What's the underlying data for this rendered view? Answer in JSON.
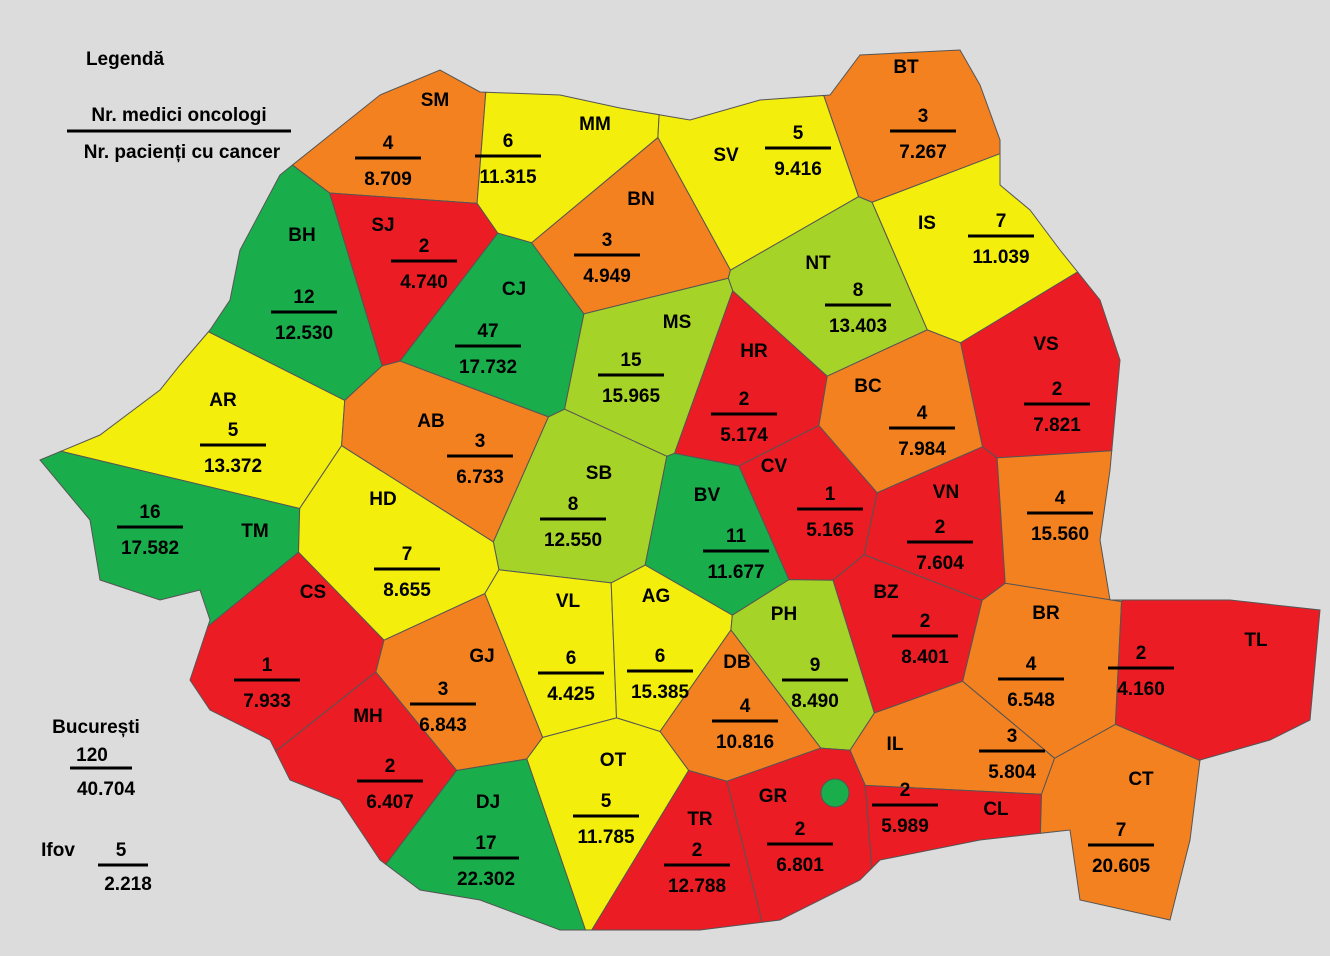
{
  "legend": {
    "title": "Legendă",
    "doctors_label": "Nr. medici oncologi",
    "patients_label": "Nr. pacienți cu cancer"
  },
  "extra": [
    {
      "name": "București",
      "doctors": 120,
      "patients": "40.704"
    },
    {
      "name": "Ifov",
      "doctors": 5,
      "patients": "2.218"
    }
  ],
  "counties": [
    {
      "code": "SM",
      "doctors": 4,
      "patients": "8.709",
      "color": "#f48120"
    },
    {
      "code": "MM",
      "doctors": 6,
      "patients": "11.315",
      "color": "#f3ee0c"
    },
    {
      "code": "BT",
      "doctors": 3,
      "patients": "7.267",
      "color": "#f48120"
    },
    {
      "code": "SV",
      "doctors": 5,
      "patients": "9.416",
      "color": "#f3ee0c"
    },
    {
      "code": "BH",
      "doctors": 12,
      "patients": "12.530",
      "color": "#1aad4b"
    },
    {
      "code": "SJ",
      "doctors": 2,
      "patients": "4.740",
      "color": "#ec1c24"
    },
    {
      "code": "CJ",
      "doctors": 47,
      "patients": "17.732",
      "color": "#1aad4b"
    },
    {
      "code": "BN",
      "doctors": 3,
      "patients": "4.949",
      "color": "#f48120"
    },
    {
      "code": "IS",
      "doctors": 7,
      "patients": "11.039",
      "color": "#f3ee0c"
    },
    {
      "code": "NT",
      "doctors": 8,
      "patients": "13.403",
      "color": "#a6d327"
    },
    {
      "code": "MS",
      "doctors": 15,
      "patients": "15.965",
      "color": "#a6d327"
    },
    {
      "code": "HR",
      "doctors": 2,
      "patients": "5.174",
      "color": "#ec1c24"
    },
    {
      "code": "VS",
      "doctors": 2,
      "patients": "7.821",
      "color": "#ec1c24"
    },
    {
      "code": "BC",
      "doctors": 4,
      "patients": "7.984",
      "color": "#f48120"
    },
    {
      "code": "AR",
      "doctors": 5,
      "patients": "13.372",
      "color": "#f3ee0c"
    },
    {
      "code": "AB",
      "doctors": 3,
      "patients": "6.733",
      "color": "#f48120"
    },
    {
      "code": "SB",
      "doctors": 8,
      "patients": "12.550",
      "color": "#a6d327"
    },
    {
      "code": "BV",
      "doctors": 11,
      "patients": "11.677",
      "color": "#1aad4b"
    },
    {
      "code": "CV",
      "doctors": 1,
      "patients": "5.165",
      "color": "#ec1c24"
    },
    {
      "code": "VN",
      "doctors": 2,
      "patients": "7.604",
      "color": "#ec1c24"
    },
    {
      "code": "TM",
      "doctors": 16,
      "patients": "17.582",
      "color": "#1aad4b"
    },
    {
      "code": "HD",
      "doctors": 7,
      "patients": "8.655",
      "color": "#f3ee0c"
    },
    {
      "code": null,
      "doctors": 4,
      "patients": "15.560",
      "color": "#f48120"
    },
    {
      "code": "CS",
      "doctors": 1,
      "patients": "7.933",
      "color": "#ec1c24"
    },
    {
      "code": "BZ",
      "doctors": 2,
      "patients": "8.401",
      "color": "#ec1c24"
    },
    {
      "code": "BR",
      "doctors": 4,
      "patients": "6.548",
      "color": "#f48120"
    },
    {
      "code": "TL",
      "doctors": 2,
      "patients": "4.160",
      "color": "#ec1c24"
    },
    {
      "code": "GJ",
      "doctors": 3,
      "patients": "6.843",
      "color": "#f48120"
    },
    {
      "code": "VL",
      "doctors": 6,
      "patients": "4.425",
      "color": "#f3ee0c"
    },
    {
      "code": "AG",
      "doctors": 6,
      "patients": "15.385",
      "color": "#f3ee0c"
    },
    {
      "code": "PH",
      "doctors": 9,
      "patients": "8.490",
      "color": "#a6d327"
    },
    {
      "code": "DB",
      "doctors": 4,
      "patients": "10.816",
      "color": "#f48120"
    },
    {
      "code": "MH",
      "doctors": 2,
      "patients": "6.407",
      "color": "#ec1c24"
    },
    {
      "code": "IL",
      "doctors": 3,
      "patients": "5.804",
      "color": "#f48120"
    },
    {
      "code": "OT",
      "doctors": 5,
      "patients": "11.785",
      "color": "#f3ee0c"
    },
    {
      "code": "DJ",
      "doctors": 17,
      "patients": "22.302",
      "color": "#1aad4b"
    },
    {
      "code": "TR",
      "doctors": 2,
      "patients": "12.788",
      "color": "#ec1c24"
    },
    {
      "code": "GR",
      "doctors": 2,
      "patients": "6.801",
      "color": "#ec1c24"
    },
    {
      "code": "CL",
      "doctors": 2,
      "patients": "5.989",
      "color": "#ec1c24"
    },
    {
      "code": "CT",
      "doctors": 7,
      "patients": "20.605",
      "color": "#f48120"
    }
  ]
}
